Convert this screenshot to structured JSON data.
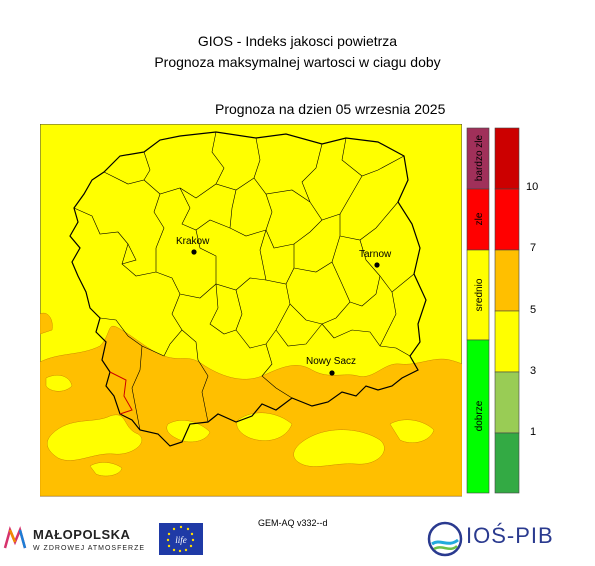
{
  "header": {
    "title_line1": "GIOS - Indeks jakosci powietrza",
    "title_line2": "Prognoza maksymalnej wartosci w ciagu doby",
    "date_label": "Prognoza na dzien  05 wrzesnia 2025"
  },
  "colors": {
    "yellow": "#ffff00",
    "orange": "#ffbf00",
    "red": "#ff0000",
    "purple": "#a0305a",
    "lightgreen": "#99cc55",
    "green": "#33aa44",
    "brightgreen": "#00ff00"
  },
  "map": {
    "cities": [
      {
        "name": "Krakow"
      },
      {
        "name": "Tarnow"
      },
      {
        "name": "Nowy Sacz"
      }
    ]
  },
  "quality_scale": {
    "categories": [
      "bardzo zle",
      "zle",
      "srednio",
      "dobrze"
    ],
    "colors": [
      "#a0305a",
      "#ff0000",
      "#ffff00",
      "#00ff00"
    ]
  },
  "numeric_scale": {
    "labels": [
      "10",
      "7",
      "5",
      "3",
      "1"
    ],
    "colors": [
      "#cc0000",
      "#ff0000",
      "#ffbf00",
      "#ffff00",
      "#99cc55",
      "#33aa44"
    ]
  },
  "footer": {
    "model": "GEM-AQ v332--d",
    "malopolska_name": "MAŁOPOLSKA",
    "malopolska_tagline": "W ZDROWEJ ATMOSFERZE",
    "eu_life_text": "life",
    "ios_name": "IOŚ-PIB"
  }
}
